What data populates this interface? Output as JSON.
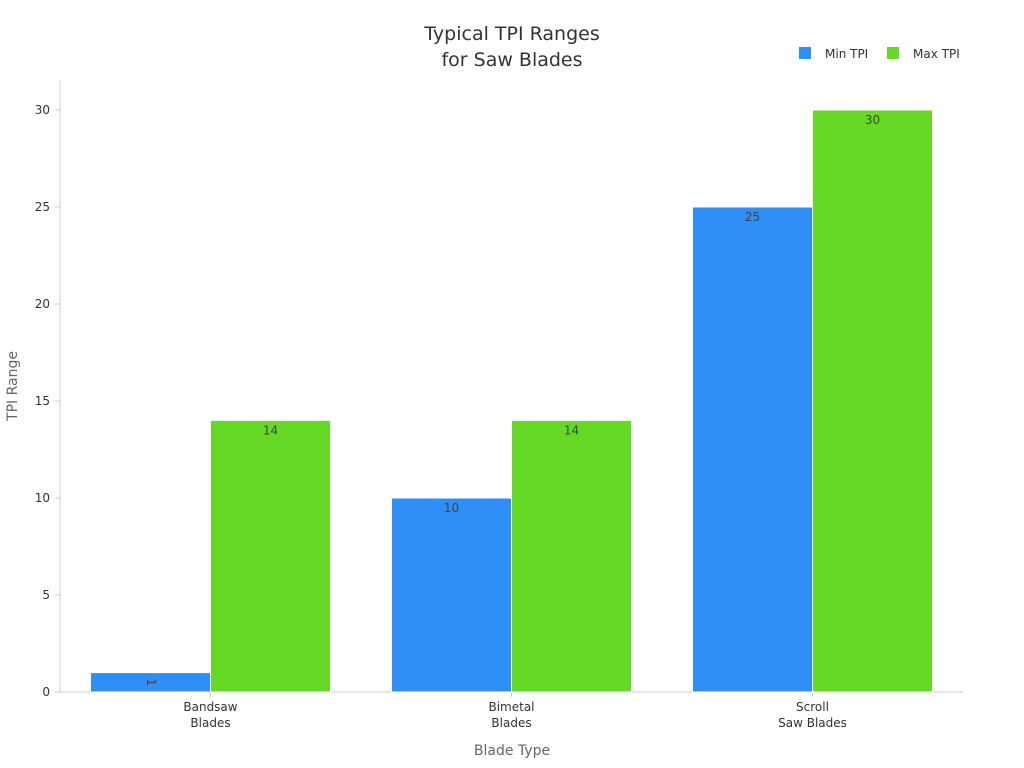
{
  "chart_data": {
    "type": "bar",
    "title": [
      "Typical TPI Ranges",
      "for Saw Blades"
    ],
    "xlabel": "Blade Type",
    "ylabel": "TPI Range",
    "categories": [
      [
        "Bandsaw",
        "Blades"
      ],
      [
        "Bimetal",
        "Blades"
      ],
      [
        "Scroll",
        "Saw Blades"
      ]
    ],
    "series": [
      {
        "name": "Min TPI",
        "color": "#2f8ff7",
        "values": [
          1,
          10,
          25
        ]
      },
      {
        "name": "Max TPI",
        "color": "#66d926",
        "values": [
          14,
          14,
          30
        ]
      }
    ],
    "ylim": [
      0,
      30
    ],
    "yticks": [
      0,
      5,
      10,
      15,
      20,
      25,
      30
    ],
    "grid": false,
    "legend_position": "top-right",
    "data_labels": true
  }
}
